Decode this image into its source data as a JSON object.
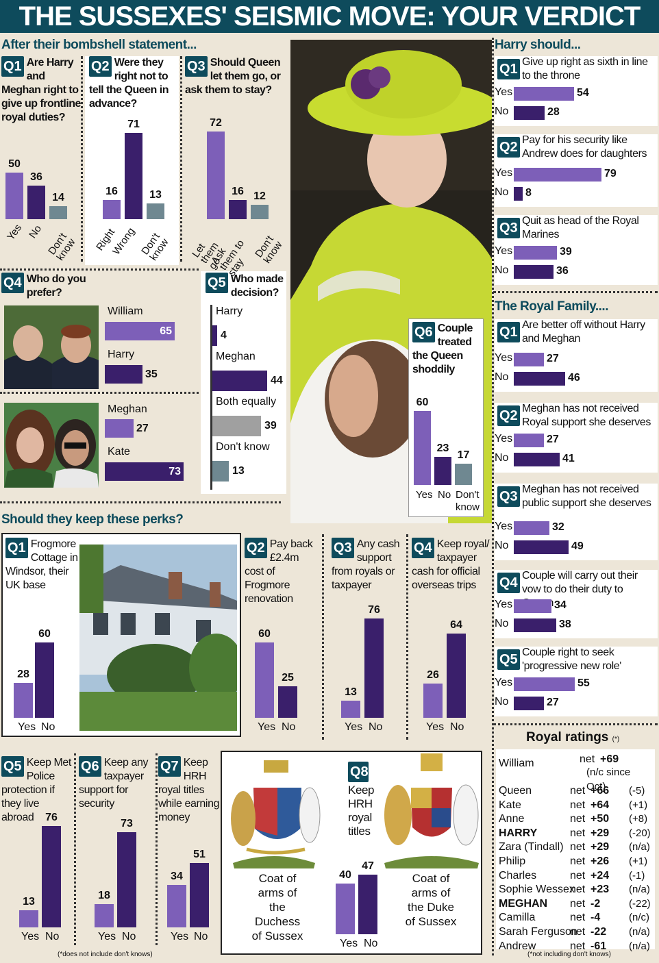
{
  "title": "THE SUSSEXES' SEISMIC MOVE: YOUR VERDICT",
  "sections": {
    "statement": "After their bombshell statement...",
    "perks": "Should they keep these perks?",
    "harry": "Harry should...",
    "royal_family": "The Royal Family....",
    "ratings": "Royal ratings",
    "ratings_sup": "(*)"
  },
  "footnotes": {
    "perks": "(*does not include don't knows)",
    "ratings": "(*not including don't knows)"
  },
  "captions": {
    "coat_duchess": "Coat of arms of the Duchess of Sussex",
    "coat_duke": "Coat of arms of the Duke of Sussex"
  },
  "colors": {
    "primary": "#7d5fb8",
    "secondary": "#3a1f6b",
    "teal": "#6f8891",
    "grey": "#a0a0a0",
    "banner": "#0e4b5c"
  },
  "chart_data": [
    {
      "id": "statement_q1",
      "type": "bar",
      "label": "Q1",
      "question": "Are Harry and Meghan right to give up frontline royal duties?",
      "categories": [
        "Yes",
        "No",
        "Don't know"
      ],
      "values": [
        50,
        36,
        14
      ]
    },
    {
      "id": "statement_q2",
      "type": "bar",
      "label": "Q2",
      "question": "Were they right not to tell the Queen in advance?",
      "categories": [
        "Right",
        "Wrong",
        "Don't know"
      ],
      "values": [
        16,
        71,
        13
      ]
    },
    {
      "id": "statement_q3",
      "type": "bar",
      "label": "Q3",
      "question": "Should Queen let them go, or ask them to stay?",
      "categories": [
        "Let them go",
        "Ask them to stay",
        "Don't know"
      ],
      "values": [
        72,
        16,
        12
      ]
    },
    {
      "id": "statement_q4",
      "type": "bar",
      "label": "Q4",
      "question": "Who do you prefer?",
      "pairs": [
        {
          "categories": [
            "William",
            "Harry"
          ],
          "values": [
            65,
            35
          ]
        },
        {
          "categories": [
            "Meghan",
            "Kate"
          ],
          "values": [
            27,
            73
          ]
        }
      ]
    },
    {
      "id": "statement_q5",
      "type": "bar",
      "label": "Q5",
      "question": "Who made decision?",
      "categories": [
        "Harry",
        "Meghan",
        "Both equally",
        "Don't know"
      ],
      "values": [
        4,
        44,
        39,
        13
      ]
    },
    {
      "id": "statement_q6",
      "type": "bar",
      "label": "Q6",
      "question": "Couple treated the Queen shoddily",
      "categories": [
        "Yes",
        "No",
        "Don't know"
      ],
      "values": [
        60,
        23,
        17
      ]
    },
    {
      "id": "harry_q1",
      "type": "bar",
      "label": "Q1",
      "question": "Give up right as sixth in line to the throne",
      "categories": [
        "Yes",
        "No"
      ],
      "values": [
        54,
        28
      ]
    },
    {
      "id": "harry_q2",
      "type": "bar",
      "label": "Q2",
      "question": "Pay for his security like Andrew does for daughters",
      "categories": [
        "Yes",
        "No"
      ],
      "values": [
        79,
        8
      ]
    },
    {
      "id": "harry_q3",
      "type": "bar",
      "label": "Q3",
      "question": "Quit as head of the Royal Marines",
      "categories": [
        "Yes",
        "No"
      ],
      "values": [
        39,
        36
      ]
    },
    {
      "id": "family_q1",
      "type": "bar",
      "label": "Q1",
      "question": "Are better off without Harry and Meghan",
      "categories": [
        "Yes",
        "No"
      ],
      "values": [
        27,
        46
      ]
    },
    {
      "id": "family_q2",
      "type": "bar",
      "label": "Q2",
      "question": "Meghan has not received Royal support she deserves",
      "categories": [
        "Yes",
        "No"
      ],
      "values": [
        27,
        41
      ]
    },
    {
      "id": "family_q3",
      "type": "bar",
      "label": "Q3",
      "question": "Meghan has not received public support she deserves",
      "categories": [
        "Yes",
        "No"
      ],
      "values": [
        32,
        49
      ]
    },
    {
      "id": "family_q4",
      "type": "bar",
      "label": "Q4",
      "question": "Couple will carry out their vow to do their duty to Queen",
      "categories": [
        "Yes",
        "No"
      ],
      "values": [
        34,
        38
      ]
    },
    {
      "id": "family_q5",
      "type": "bar",
      "label": "Q5",
      "question": "Couple right to seek 'progressive new role'",
      "categories": [
        "Yes",
        "No"
      ],
      "values": [
        55,
        27
      ]
    },
    {
      "id": "perks_q1",
      "type": "bar",
      "label": "Q1",
      "question": "Frogmore Cottage in Windsor, their UK base",
      "categories": [
        "Yes",
        "No"
      ],
      "values": [
        28,
        60
      ]
    },
    {
      "id": "perks_q2",
      "type": "bar",
      "label": "Q2",
      "question": "Pay back £2.4m cost of Frogmore renovation",
      "categories": [
        "Yes",
        "No"
      ],
      "values": [
        60,
        25
      ]
    },
    {
      "id": "perks_q3",
      "type": "bar",
      "label": "Q3",
      "question": "Any cash support from royals or taxpayer",
      "categories": [
        "Yes",
        "No"
      ],
      "values": [
        13,
        76
      ]
    },
    {
      "id": "perks_q4",
      "type": "bar",
      "label": "Q4",
      "question": "Keep royal/ taxpayer cash for official overseas trips",
      "categories": [
        "Yes",
        "No"
      ],
      "values": [
        26,
        64
      ]
    },
    {
      "id": "perks_q5",
      "type": "bar",
      "label": "Q5",
      "question": "Keep Met Police protection if they live abroad",
      "categories": [
        "Yes",
        "No"
      ],
      "values": [
        13,
        76
      ]
    },
    {
      "id": "perks_q6",
      "type": "bar",
      "label": "Q6",
      "question": "Keep any taxpayer support for security",
      "categories": [
        "Yes",
        "No"
      ],
      "values": [
        18,
        73
      ]
    },
    {
      "id": "perks_q7",
      "type": "bar",
      "label": "Q7",
      "question": "Keep HRH royal titles while earning money",
      "categories": [
        "Yes",
        "No"
      ],
      "values": [
        34,
        51
      ]
    },
    {
      "id": "perks_q8",
      "type": "bar",
      "label": "Q8",
      "question": "Keep HRH royal titles",
      "categories": [
        "Yes",
        "No"
      ],
      "values": [
        40,
        47
      ]
    },
    {
      "id": "royal_ratings",
      "type": "table",
      "columns": [
        "Name",
        "Net",
        "Change"
      ],
      "rows": [
        {
          "name": "William",
          "net": "+69",
          "change": "(n/c since Oct)"
        },
        {
          "name": "Queen",
          "net": "+66",
          "change": "(-5)"
        },
        {
          "name": "Kate",
          "net": "+64",
          "change": "(+1)"
        },
        {
          "name": "Anne",
          "net": "+50",
          "change": "(+8)"
        },
        {
          "name": "HARRY",
          "net": "+29",
          "change": "(-20)"
        },
        {
          "name": "Zara (Tindall)",
          "net": "+29",
          "change": "(n/a)"
        },
        {
          "name": "Philip",
          "net": "+26",
          "change": "(+1)"
        },
        {
          "name": "Charles",
          "net": "+24",
          "change": "(-1)"
        },
        {
          "name": "Sophie Wessex",
          "net": "+23",
          "change": "(n/a)"
        },
        {
          "name": "MEGHAN",
          "net": "-2",
          "change": "(-22)"
        },
        {
          "name": "Camilla",
          "net": "-4",
          "change": "(n/c)"
        },
        {
          "name": "Sarah Ferguson",
          "net": "-22",
          "change": "(n/a)"
        },
        {
          "name": "Andrew",
          "net": "-61",
          "change": "(n/a)"
        }
      ]
    }
  ]
}
